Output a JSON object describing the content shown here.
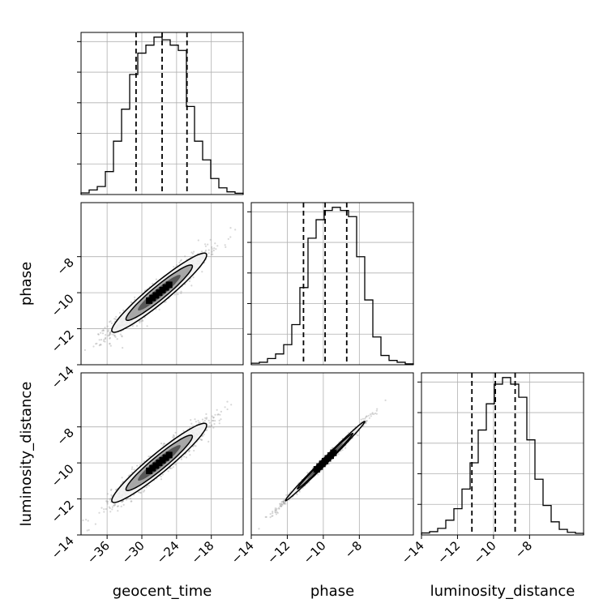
{
  "chart_data": {
    "type": "corner",
    "parameters": [
      "geocent_time",
      "phase",
      "luminosity_distance"
    ],
    "axis_labels": {
      "geocent_time": "geocent_time",
      "phase": "phase",
      "luminosity_distance": "luminosity_distance"
    },
    "ranges": {
      "geocent_time": [
        -40.5,
        -12.5
      ],
      "phase": [
        -14.0,
        -5.0
      ],
      "luminosity_distance": [
        -14.0,
        -5.0
      ]
    },
    "ticks": {
      "geocent_time": [
        -36,
        -30,
        -24,
        -18
      ],
      "phase": [
        -14,
        -12,
        -10,
        -8
      ],
      "luminosity_distance": [
        -14,
        -12,
        -10,
        -8
      ]
    },
    "tick_labels": {
      "geocent_time": [
        "−36",
        "−30",
        "−24",
        "−18"
      ],
      "phase": [
        "−14",
        "−12",
        "−10",
        "−8"
      ],
      "luminosity_distance": [
        "−14",
        "−12",
        "−10",
        "−8"
      ]
    },
    "quantiles": {
      "geocent_time": [
        -31.0,
        -26.5,
        -22.2
      ],
      "phase": [
        -11.1,
        -9.9,
        -8.7
      ],
      "luminosity_distance": [
        -11.2,
        -9.9,
        -8.8
      ]
    },
    "histograms": {
      "geocent_time": {
        "bin_edges": [
          -40.5,
          -39.1,
          -37.7,
          -36.3,
          -34.9,
          -33.5,
          -32.1,
          -30.7,
          -29.3,
          -27.9,
          -26.5,
          -25.1,
          -23.7,
          -22.3,
          -20.9,
          -19.5,
          -18.1,
          -16.7,
          -15.3,
          -13.9,
          -12.5
        ],
        "counts": [
          0.6,
          1.7,
          3.0,
          8.6,
          20,
          32,
          45,
          53,
          56,
          59,
          58,
          56,
          54,
          33,
          20,
          13,
          6,
          2.5,
          1.0,
          0.5
        ]
      },
      "phase": {
        "bin_edges": [
          -14.0,
          -13.55,
          -13.1,
          -12.65,
          -12.2,
          -11.75,
          -11.3,
          -10.85,
          -10.4,
          -9.95,
          -9.5,
          -9.05,
          -8.6,
          -8.15,
          -7.7,
          -7.25,
          -6.8,
          -6.35,
          -5.9,
          -5.45,
          -5.0
        ],
        "counts": [
          0.5,
          0.8,
          2.0,
          3.5,
          6.5,
          13,
          25,
          41,
          47,
          50,
          51,
          50,
          48,
          35,
          21,
          9,
          3,
          1.4,
          0.8,
          0.3
        ]
      },
      "luminosity_distance": {
        "bin_edges": [
          -14.0,
          -13.55,
          -13.1,
          -12.65,
          -12.2,
          -11.75,
          -11.3,
          -10.85,
          -10.4,
          -9.95,
          -9.5,
          -9.05,
          -8.6,
          -8.15,
          -7.7,
          -7.25,
          -6.8,
          -6.35,
          -5.9,
          -5.45,
          -5.0
        ],
        "counts": [
          0.6,
          1.0,
          2.0,
          4.5,
          8.0,
          14,
          22,
          32,
          40,
          46,
          48,
          46,
          42,
          29,
          17,
          9,
          4,
          1.7,
          0.8,
          0.5
        ]
      }
    },
    "bivariate": [
      {
        "x": "geocent_time",
        "y": "phase",
        "mean": [
          -27.0,
          -10.0
        ],
        "std": [
          4.1,
          1.1
        ],
        "corr": 0.95
      },
      {
        "x": "geocent_time",
        "y": "luminosity_distance",
        "mean": [
          -27.0,
          -10.0
        ],
        "std": [
          4.1,
          1.1
        ],
        "corr": 0.95
      },
      {
        "x": "phase",
        "y": "luminosity_distance",
        "mean": [
          -9.9,
          -9.9
        ],
        "std": [
          1.1,
          1.1
        ],
        "corr": 0.995
      }
    ],
    "grid": true,
    "line_color": "#000000",
    "scatter_color": "#8c8c8c",
    "fill_colors": [
      "#f2f2f2",
      "#9a9a9a",
      "#4a4a4a",
      "#000000"
    ]
  }
}
